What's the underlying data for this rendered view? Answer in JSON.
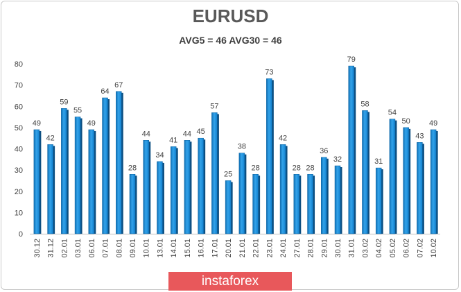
{
  "chart_data": {
    "type": "bar",
    "title": "EURUSD",
    "subtitle": "AVG5 = 46 AVG30 = 46",
    "categories": [
      "30.12",
      "31.12",
      "02.01",
      "03.01",
      "06.01",
      "07.01",
      "08.01",
      "09.01",
      "10.01",
      "13.01",
      "14.01",
      "15.01",
      "16.01",
      "17.01",
      "20.01",
      "21.01",
      "22.01",
      "23.01",
      "24.01",
      "27.01",
      "28.01",
      "29.01",
      "30.01",
      "31.01",
      "03.02",
      "04.02",
      "05.02",
      "06.02",
      "07.02",
      "10.02"
    ],
    "values": [
      49,
      42,
      59,
      55,
      49,
      64,
      67,
      28,
      44,
      34,
      41,
      44,
      45,
      57,
      25,
      38,
      28,
      73,
      42,
      28,
      28,
      36,
      32,
      79,
      58,
      31,
      54,
      50,
      43,
      49
    ],
    "yticks": [
      0,
      10,
      20,
      30,
      40,
      50,
      60,
      70,
      80
    ],
    "ylim": [
      0,
      80
    ],
    "grid": false,
    "bar_color": "#1a8fd8",
    "xlabel": "",
    "ylabel": ""
  },
  "watermark": "instaforex"
}
